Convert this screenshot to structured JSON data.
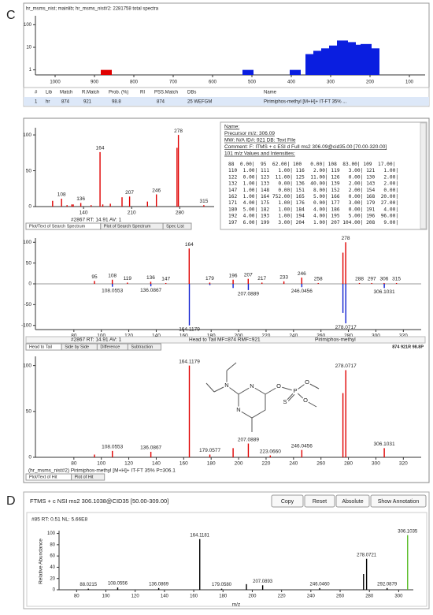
{
  "panel_c": {
    "label": "C",
    "histogram": {
      "title": "hr_msms_nist; mainlib; hr_msms_nist#2: 2281758 total spectra",
      "log_scale": true,
      "xlim": [
        1050,
        60
      ],
      "ylim": [
        0.6,
        250
      ],
      "xticks": [
        1000,
        900,
        800,
        700,
        600,
        500,
        400,
        300,
        200,
        100
      ],
      "yticks": [
        1,
        10,
        100
      ],
      "x": [
        870,
        510,
        390,
        350,
        330,
        310,
        290,
        270,
        250,
        230,
        210,
        190
      ],
      "values": [
        1,
        1,
        1,
        5,
        7,
        9,
        12,
        20,
        17,
        13,
        14,
        9
      ],
      "colors": [
        "#e00000",
        "#0a1ee0",
        "#0a1ee0",
        "#0a1ee0",
        "#0a1ee0",
        "#0a1ee0",
        "#0a1ee0",
        "#0a1ee0",
        "#0a1ee0",
        "#0a1ee0",
        "#0a1ee0",
        "#0a1ee0"
      ]
    },
    "hit_table": {
      "header": [
        "#",
        "Lib",
        "Match",
        "R.Match",
        "Prob. (%)",
        "RI",
        "PSS.Match",
        "DBs",
        "Name"
      ],
      "row": [
        "1",
        "hr",
        "874",
        "921",
        "98.8",
        "874",
        "25 WEFGM",
        "Pirimiphos-methyl [M+H]+ IT-FT 35% ..."
      ]
    },
    "search_spectrum": {
      "caption": "#2867 RT: 14.91 AV: 1",
      "tabs": [
        "Plot/Text of Search Spectrum",
        "Plot of Search Spectrum",
        "Spec List"
      ],
      "xlim": [
        70,
        330
      ],
      "ylim": [
        0,
        110
      ],
      "xticks": [
        140,
        210,
        280
      ],
      "yticks": [
        0,
        50,
        100
      ],
      "series": [
        {
          "color": "#e00000",
          "label_color": "#3333cc",
          "x": [
            95,
            108,
            116,
            123,
            125,
            136,
            151,
            164,
            168,
            179,
            196,
            207,
            233,
            246,
            276,
            278,
            315
          ],
          "values": [
            8,
            11,
            2,
            3,
            3,
            5,
            2,
            76,
            3,
            4,
            13,
            14,
            7,
            17,
            82,
            100,
            2
          ],
          "labels": [
            null,
            "108",
            null,
            null,
            null,
            "136",
            null,
            "164",
            null,
            null,
            null,
            "207",
            null,
            "246",
            null,
            "278",
            "315"
          ]
        }
      ]
    },
    "spectrum_text": {
      "lines": [
        "Name:",
        "Precursor m/z: 306.09",
        "MW: N/A  ID#: 921  DB: Text File",
        "Comment: F: ITMS + c ESI d Full ms2 306.09@cid35.00 [70.00-320.00]",
        "101 m/z Values and Intensities:"
      ],
      "rows": [
        "88  0.00|  95  62.00| 100   0.00| 108  83.00| 109  17.00|",
        "110  1.00| 111   1.00| 116   2.00| 119   3.00| 121   1.00|",
        "122  0.00| 123  11.00| 125  11.00| 126   0.00| 130   2.00|",
        "132  1.00| 133   0.00| 136  40.00| 139   2.00| 143   2.00|",
        "147  1.00| 148   0.00| 151   8.00| 152   2.00| 154   0.00|",
        "162  1.00| 164 752.00| 165   5.00| 166   0.00| 168  20.00|",
        "171  4.00| 175   1.00| 176   0.00| 177   3.00| 179  27.00|",
        "180  5.00| 182   1.00| 184   4.00| 186   0.00| 191   4.00|",
        "192  4.00| 193   1.00| 194   4.00| 195   5.00| 196  96.00|",
        "197  6.00| 199   3.00| 204   1.00| 207 104.00| 208   9.00|"
      ]
    },
    "head_to_tail": {
      "status": [
        "#2867 RT: 14.91 AV: 1",
        "Head to Tail MF=874 RMF=921",
        "Pirimiphos-methyl"
      ],
      "tabs": [
        "Head to Tail",
        "Side by Side",
        "Difference",
        "Subtraction"
      ],
      "scores": "874 921R 98.8P",
      "xlim": [
        52,
        333
      ],
      "ylim": [
        -110,
        110
      ],
      "xticks": [
        80,
        100,
        120,
        140,
        160,
        180,
        200,
        220,
        240,
        260,
        280,
        300,
        320
      ],
      "yticks": [
        100,
        50,
        0,
        -50,
        -100
      ],
      "series": [
        {
          "color": "#e00000",
          "label_color": "#e00000",
          "x": [
            95,
            108,
            119,
            136,
            147,
            164,
            179,
            196,
            207,
            217,
            233,
            246,
            258,
            276,
            278,
            288,
            297,
            306,
            315
          ],
          "values": [
            7,
            10,
            3,
            5,
            2,
            85,
            3,
            10,
            12,
            3,
            6,
            15,
            2,
            75,
            100,
            2,
            2,
            2,
            2
          ],
          "labels": [
            "95",
            "108",
            "119",
            "136",
            "147",
            "164",
            "179",
            "196",
            "207",
            "217",
            "233",
            "246",
            "258",
            null,
            "278",
            "288",
            "297",
            "306",
            "315"
          ]
        },
        {
          "color": "#1020d0",
          "label_color": "#2233aa",
          "x": [
            108.0553,
            136.0867,
            164.1179,
            179.0577,
            196,
            207.0889,
            246.0456,
            276,
            278.0717,
            306.1031
          ],
          "values": [
            -7,
            -6,
            -100,
            -3,
            -10,
            -15,
            -8,
            -70,
            -95,
            -10
          ],
          "labels": [
            "108.0553",
            "136.0867",
            "164.1179",
            null,
            null,
            "207.0889",
            "246.0456",
            null,
            "278.0717",
            "306.1031"
          ]
        }
      ]
    },
    "hit_plot": {
      "caption": "(hr_msms_nist#2) Pirimiphos-methyl [M+H]+ IT-FT 35% P=306.1",
      "tabs": [
        "Plot/Text of Hit",
        "Plot of Hit"
      ],
      "atoms": [
        "N",
        "N",
        "N",
        "O",
        "P",
        "S",
        "O",
        "O"
      ],
      "xlim": [
        52,
        333
      ],
      "ylim": [
        0,
        110
      ],
      "xticks": [
        80,
        100,
        120,
        140,
        160,
        180,
        200,
        220,
        240,
        260,
        280,
        300,
        320
      ],
      "yticks": [
        0,
        50,
        100
      ],
      "series": [
        {
          "color": "#e00000",
          "label_color": "#2233aa",
          "x": [
            95,
            108.0553,
            136.0867,
            164.1179,
            179.0577,
            196,
            207.0889,
            223.066,
            246.0456,
            276,
            278.0717,
            306.1031
          ],
          "values": [
            3,
            7,
            6,
            100,
            3,
            10,
            15,
            2,
            8,
            70,
            95,
            10
          ],
          "labels": [
            null,
            "108.0553",
            "136.0867",
            "164.1179",
            "179.0577",
            null,
            "207.0889",
            "223.0660",
            "246.0456",
            null,
            "278.0717",
            "306.1031"
          ]
        }
      ]
    }
  },
  "panel_d": {
    "label": "D",
    "header": "FTMS + c NSI ms2 306.1038@CID35 [50.00-309.00]",
    "buttons": [
      "Copy",
      "Reset",
      "Absolute",
      "Show Annotation"
    ],
    "info": "#85  RT: 0.51  NL: 5.66E8",
    "y_label": "Relative Abundance",
    "x_label": "m/z",
    "spectrum": {
      "xlim": [
        68,
        310
      ],
      "ylim": [
        0,
        105
      ],
      "xticks": [
        80,
        100,
        120,
        140,
        160,
        180,
        200,
        220,
        240,
        260,
        280,
        300
      ],
      "yticks": [
        0,
        20,
        40,
        60,
        80,
        100
      ],
      "series": [
        {
          "color": "#000000",
          "label_color": "#222222",
          "x": [
            88.0215,
            108.0556,
            136.0869,
            164.1181,
            179.058,
            196,
            207.0893,
            246.046,
            276,
            278.0721,
            292.0879
          ],
          "values": [
            2,
            4,
            3,
            90,
            2,
            10,
            8,
            3,
            28,
            55,
            3
          ],
          "labels": [
            "88.0215",
            "108.0556",
            "136.0869",
            "164.1181",
            "179.0580",
            null,
            "207.0893",
            "246.0460",
            null,
            "278.0721",
            "292.0879"
          ]
        },
        {
          "color": "#55bb22",
          "label_color": "#222222",
          "x": [
            306.1035
          ],
          "values": [
            97
          ],
          "labels": [
            "306.1035"
          ]
        }
      ]
    }
  }
}
